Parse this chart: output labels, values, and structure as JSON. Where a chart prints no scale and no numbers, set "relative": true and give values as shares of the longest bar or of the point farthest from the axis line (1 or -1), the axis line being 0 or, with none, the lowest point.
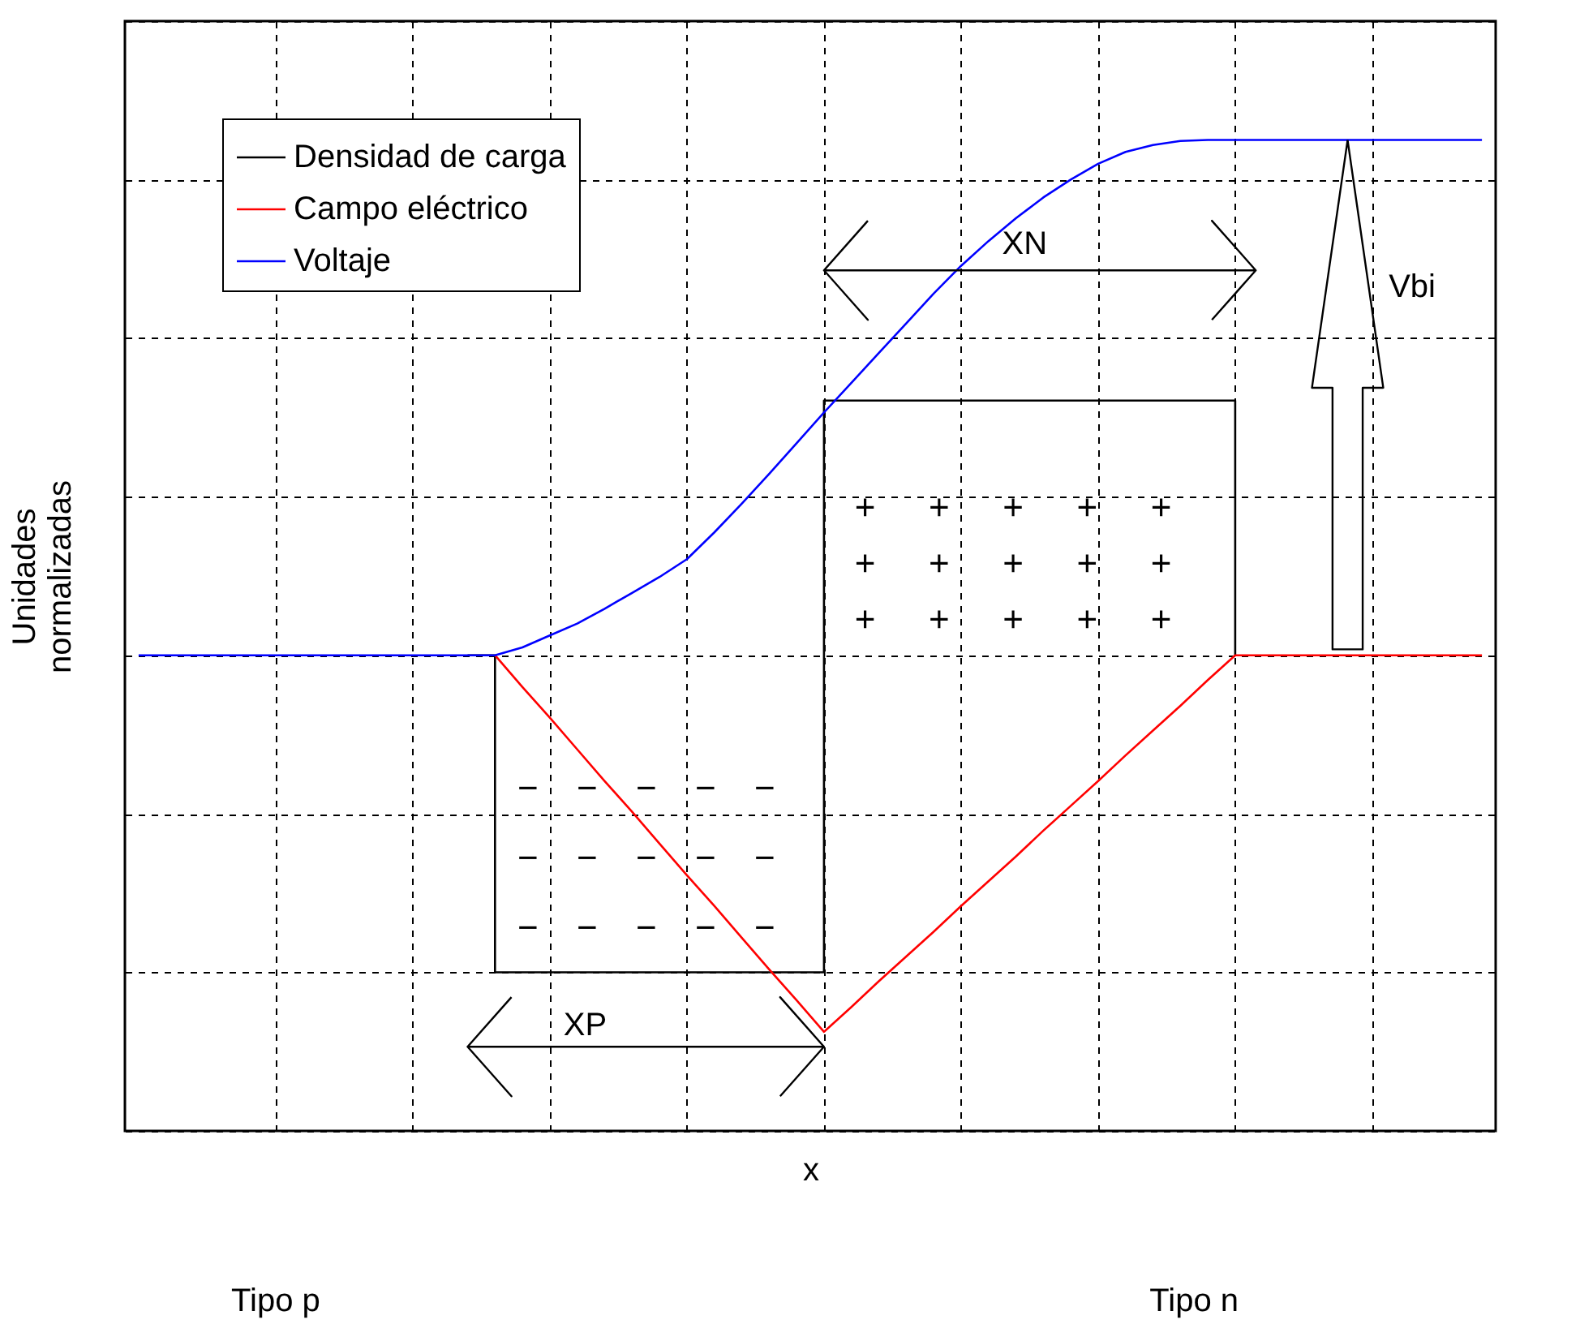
{
  "chart_data": {
    "type": "line",
    "relative": true,
    "xlabel": "x",
    "ylabel": "Unidades normalizadas",
    "grid": true,
    "legend": "top left",
    "categories": [
      null,
      null,
      null,
      null,
      null,
      null,
      null,
      null,
      null,
      null,
      null,
      null,
      null,
      null,
      null,
      null,
      null,
      null,
      null,
      null,
      null,
      null,
      null,
      null,
      null,
      null,
      null,
      null,
      null,
      null,
      null,
      null,
      null,
      null,
      null,
      null,
      null,
      null,
      null,
      null,
      null,
      null,
      null,
      null,
      null,
      null,
      null,
      null,
      null,
      null
    ],
    "series": [
      {
        "name": "Densidad de carga",
        "type": "step",
        "color": "#000000",
        "values": [
          null,
          null,
          null,
          null,
          null,
          null,
          null,
          null,
          null,
          null,
          null,
          null,
          0.48,
          0.16,
          0.16,
          0.16,
          0.16,
          0.16,
          0.16,
          0.16,
          0.16,
          0.16,
          0.16,
          0.16,
          0.16,
          0.737,
          0.737,
          0.737,
          0.737,
          0.737,
          0.737,
          0.737,
          0.737,
          0.737,
          0.737,
          0.737,
          0.737,
          0.737,
          0.737,
          0.737,
          0.48,
          null,
          null,
          null,
          null,
          null,
          null,
          null,
          null,
          null
        ]
      },
      {
        "name": "Campo eléctrico",
        "color": "#ff0000",
        "values": [
          null,
          null,
          null,
          null,
          null,
          null,
          null,
          null,
          null,
          null,
          null,
          null,
          null,
          0.48,
          0.448,
          0.417,
          0.385,
          0.353,
          0.322,
          0.29,
          0.258,
          0.227,
          0.195,
          0.163,
          0.132,
          0.1,
          0.125,
          0.151,
          0.176,
          0.201,
          0.227,
          0.252,
          0.277,
          0.303,
          0.328,
          0.353,
          0.379,
          0.404,
          0.429,
          0.455,
          0.48,
          0.48,
          0.48,
          0.48,
          0.48,
          0.48,
          0.48,
          0.48,
          0.48,
          0.48
        ]
      },
      {
        "name": "Voltaje",
        "color": "#0000ff",
        "values": [
          0.48,
          0.48,
          0.48,
          0.48,
          0.48,
          0.48,
          0.48,
          0.48,
          0.48,
          0.48,
          0.48,
          0.48,
          0.48,
          0.48,
          0.488,
          0.5,
          0.512,
          0.527,
          0.543,
          0.559,
          0.577,
          0.604,
          0.633,
          0.663,
          0.694,
          0.725,
          0.755,
          0.785,
          0.815,
          0.845,
          0.873,
          0.898,
          0.921,
          0.942,
          0.96,
          0.976,
          0.988,
          0.995,
          0.999,
          1,
          1,
          1,
          1,
          1,
          1,
          1,
          1,
          1,
          1,
          1
        ]
      }
    ],
    "annotations": [
      "XP",
      "XN",
      "Vbi",
      "+",
      "+",
      "+",
      "+",
      "+",
      "+",
      "+",
      "+",
      "+",
      "+",
      "+",
      "+",
      "+",
      "+",
      "+",
      "−",
      "−",
      "−",
      "−",
      "−",
      "−",
      "−",
      "−",
      "−",
      "−",
      "−",
      "−",
      "−",
      "−",
      "−",
      "Tipo p",
      "Tipo n"
    ]
  }
}
